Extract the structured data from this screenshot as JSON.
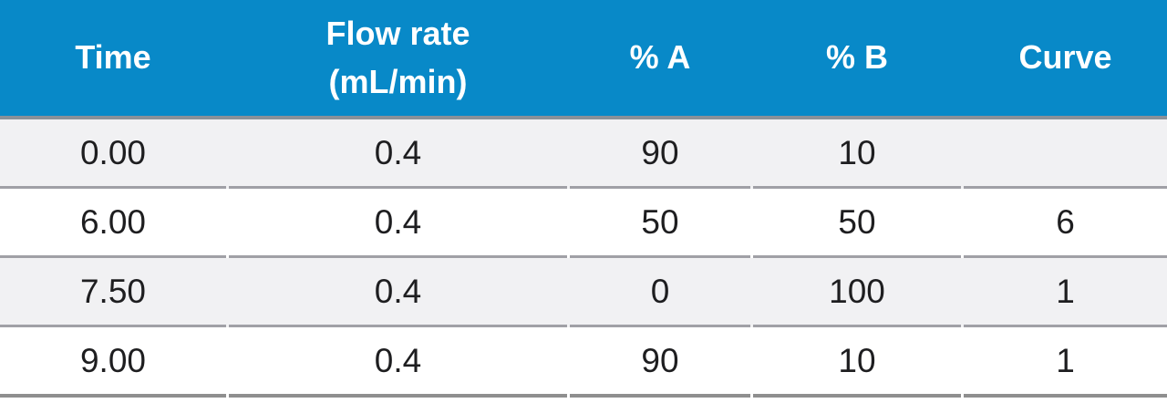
{
  "chart_data": {
    "type": "table",
    "columns": [
      "Time",
      "Flow rate (mL/min)",
      "% A",
      "% B",
      "Curve"
    ],
    "rows": [
      [
        "0.00",
        "0.4",
        "90",
        "10",
        ""
      ],
      [
        "6.00",
        "0.4",
        "50",
        "50",
        "6"
      ],
      [
        "7.50",
        "0.4",
        "0",
        "100",
        "1"
      ],
      [
        "9.00",
        "0.4",
        "90",
        "10",
        "1"
      ]
    ]
  },
  "header": {
    "flow_line1": "Flow rate",
    "flow_line2": "(mL/min)"
  },
  "colors": {
    "header_bg": "#0889c8",
    "header_text": "#ffffff",
    "row_alt_bg": "#f1f1f3",
    "row_bg": "#ffffff",
    "row_divider": "#a0a0a6",
    "header_divider": "#8a9199",
    "bottom_border": "#8f8f8f",
    "body_text": "#1e1e20"
  }
}
